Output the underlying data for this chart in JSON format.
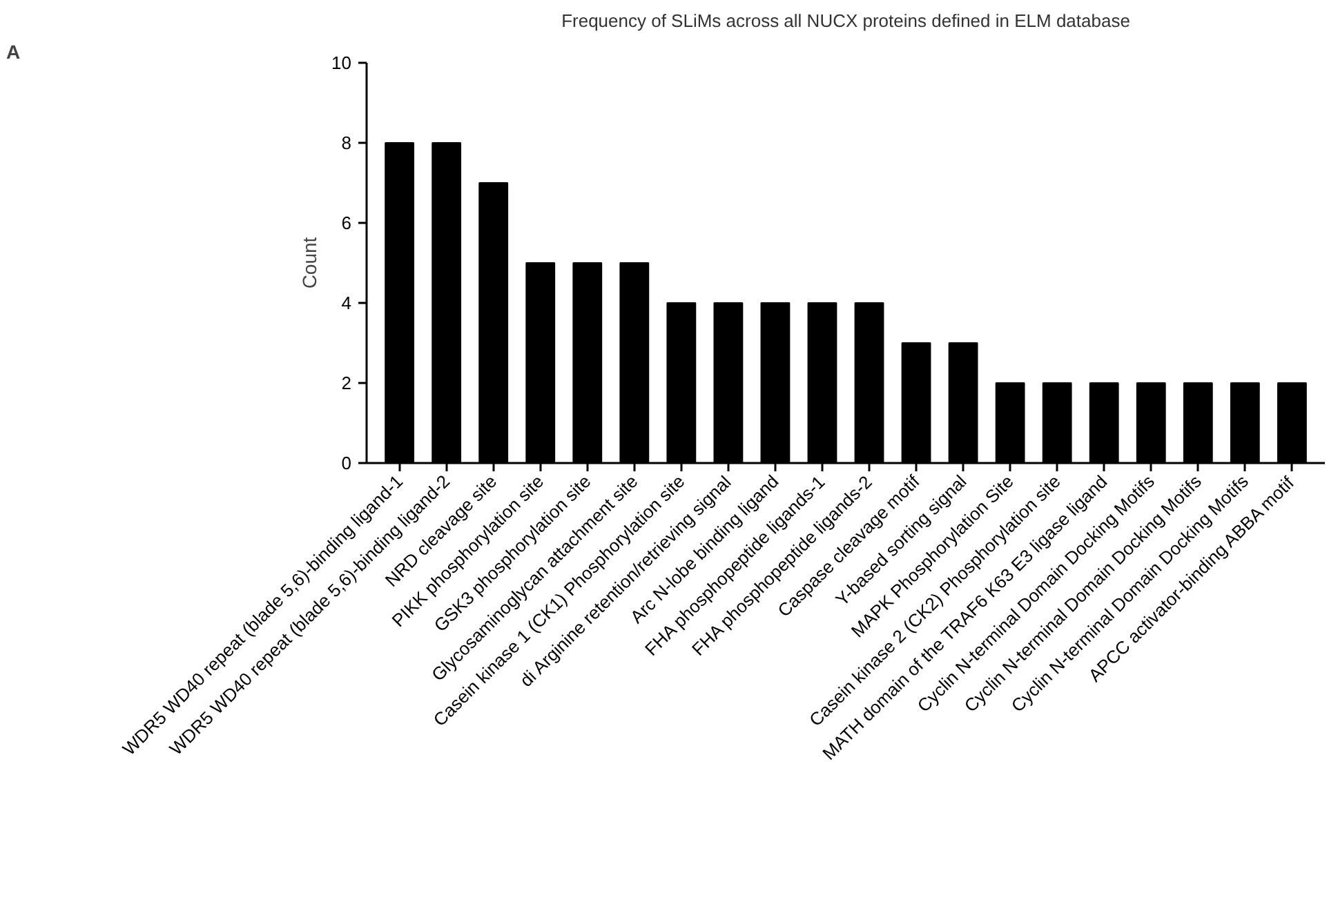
{
  "chart_data": {
    "type": "bar",
    "title": "Frequency of SLiMs across all NUCX proteins defined in ELM database",
    "ylabel": "Count",
    "categories": [
      "WDR5 WD40 repeat (blade 5,6)-binding ligand-1",
      "WDR5 WD40 repeat (blade 5,6)-binding ligand-2",
      "NRD cleavage site",
      "PIKK phosphorylation site",
      "GSK3 phosphorylation site",
      "Glycosaminoglycan attachment site",
      "Casein kinase 1 (CK1) Phosphorylation site",
      "di Arginine retention/retrieving signal",
      "Arc N-lobe binding ligand",
      "FHA phosphopeptide ligands-1",
      "FHA phosphopeptide ligands-2",
      "Caspase cleavage motif",
      "Y-based sorting signal",
      "MAPK Phosphorylation Site",
      "Casein kinase 2 (CK2) Phosphorylation site",
      "MATH domain of the TRAF6 K63 E3 ligase ligand",
      "Cyclin N-terminal Domain Docking Motifs",
      "Cyclin N-terminal Domain Docking Motifs",
      "Cyclin N-terminal Domain Docking Motifs",
      "APCC activator-binding ABBA motif"
    ],
    "values": [
      8,
      8,
      7,
      5,
      5,
      5,
      4,
      4,
      4,
      4,
      4,
      3,
      3,
      2,
      2,
      2,
      2,
      2,
      2,
      2
    ],
    "color": "#000000",
    "ylim": [
      0,
      10
    ],
    "yticks": [
      0,
      2,
      4,
      6,
      8,
      10
    ],
    "grid": false,
    "annotations": [
      "A"
    ]
  }
}
